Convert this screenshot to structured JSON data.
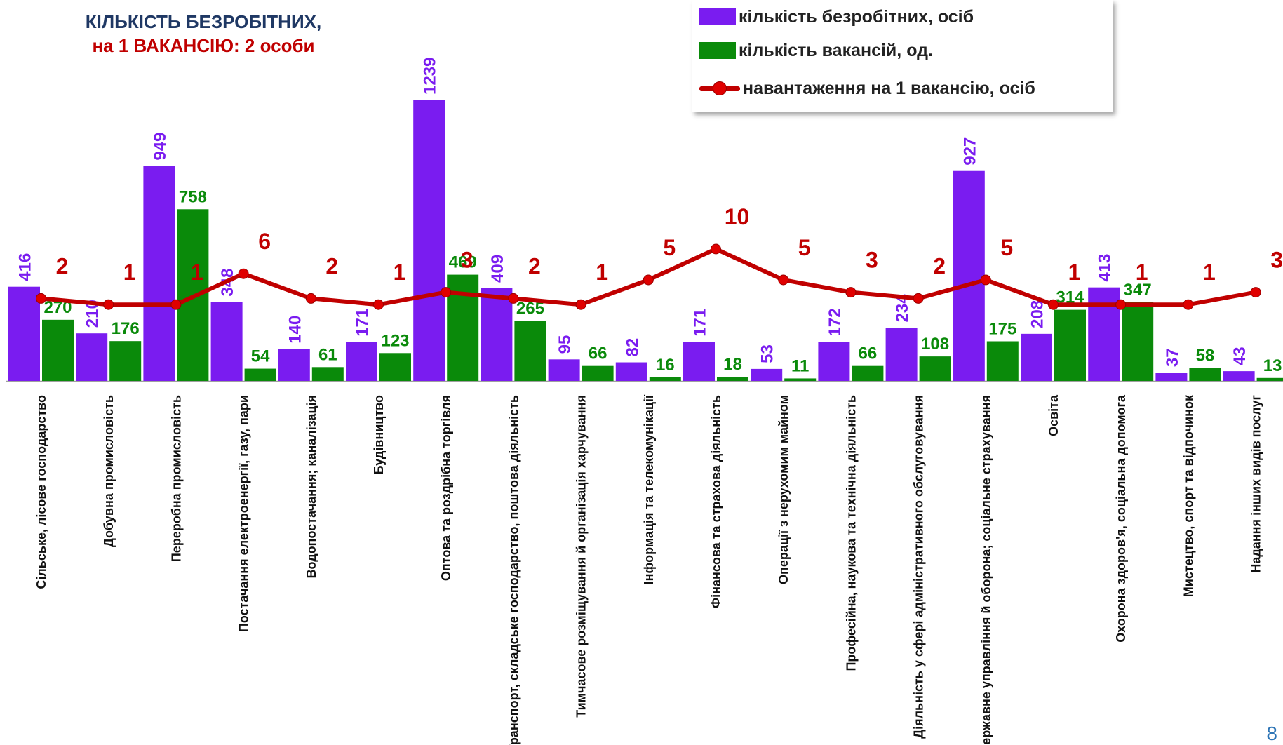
{
  "header": {
    "title_line1": "КІЛЬКІСТЬ БЕЗРОБІТНИХ,",
    "title_line2": "на 1 ВАКАНСІЮ: 2 особи"
  },
  "page_number": "8",
  "colors": {
    "unemployed": "#7a1cf0",
    "vacancies": "#0a8a0a",
    "load_line": "#c00000",
    "label_unemployed": "#7a1cf0",
    "label_vacancies": "#0a8a0a",
    "label_load": "#c00000"
  },
  "chart_data": {
    "type": "bar",
    "categories": [
      "Сільське, лісове господарство",
      "Добувна промисловість",
      "Переробна промисловість",
      "Постачання електроенергії, газу, пари",
      "Водопостачання; каналізація",
      "Будівництво",
      "Оптова та роздрібна торгівля",
      "Транспорт, складське господарство, поштова діяльність",
      "Тимчасове розміщування й організація харчування",
      "Інформація та телекомунікації",
      "Фінансова та страхова діяльність",
      "Операції з нерухомим майном",
      "Професійна, наукова та технічна діяльність",
      "Діяльність у сфері адміністративного обслуговування",
      "Державне управління й оборона; соціальне страхування",
      "Освіта",
      "Охорона здоров'я, соціальна допомога",
      "Мистецтво, спорт та відпочинок",
      "Надання інших видів послуг"
    ],
    "series": [
      {
        "name": "кількість безробітних, осіб",
        "type": "bar",
        "values": [
          416,
          210,
          949,
          348,
          140,
          171,
          1239,
          409,
          95,
          82,
          171,
          53,
          172,
          234,
          927,
          208,
          413,
          37,
          43
        ]
      },
      {
        "name": "кількість вакансій, од.",
        "type": "bar",
        "values": [
          270,
          176,
          758,
          54,
          61,
          123,
          469,
          265,
          66,
          16,
          18,
          11,
          66,
          108,
          175,
          314,
          347,
          58,
          13
        ]
      },
      {
        "name": "навантаження на 1 вакансію, осіб",
        "type": "line",
        "values": [
          2,
          1,
          1,
          6,
          2,
          1,
          3,
          2,
          1,
          5,
          10,
          5,
          3,
          2,
          5,
          1,
          1,
          1,
          3
        ]
      }
    ]
  }
}
